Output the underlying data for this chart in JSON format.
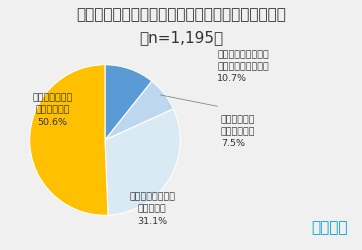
{
  "title": "地方（国内）移住についてどのように思いますか？",
  "subtitle": "（n=1,195）",
  "slices": [
    {
      "label_line1": "すでに地方移住した",
      "label_line2": "（したことがある）",
      "label_line3": "10.7%",
      "value": 10.7,
      "color": "#5b9bd5"
    },
    {
      "label_line1": "いずれは地方",
      "label_line2": "移住をしたい",
      "label_line3": "7.5%",
      "value": 7.5,
      "color": "#bdd7ee"
    },
    {
      "label_line1": "地方移住を考えた",
      "label_line2": "ことがある",
      "label_line3": "31.1%",
      "value": 31.1,
      "color": "#daeaf5"
    },
    {
      "label_line1": "地方移住したい",
      "label_line2": "とは思わない",
      "label_line3": "50.6%",
      "value": 50.6,
      "color": "#ffc000"
    }
  ],
  "start_angle": 90,
  "brand_text": "エアトリ",
  "brand_color": "#00a0d2",
  "background_color": "#f0f0f0",
  "title_fontsize": 8.5,
  "subtitle_fontsize": 8.0,
  "label_fontsize": 6.8,
  "brand_fontsize": 11
}
